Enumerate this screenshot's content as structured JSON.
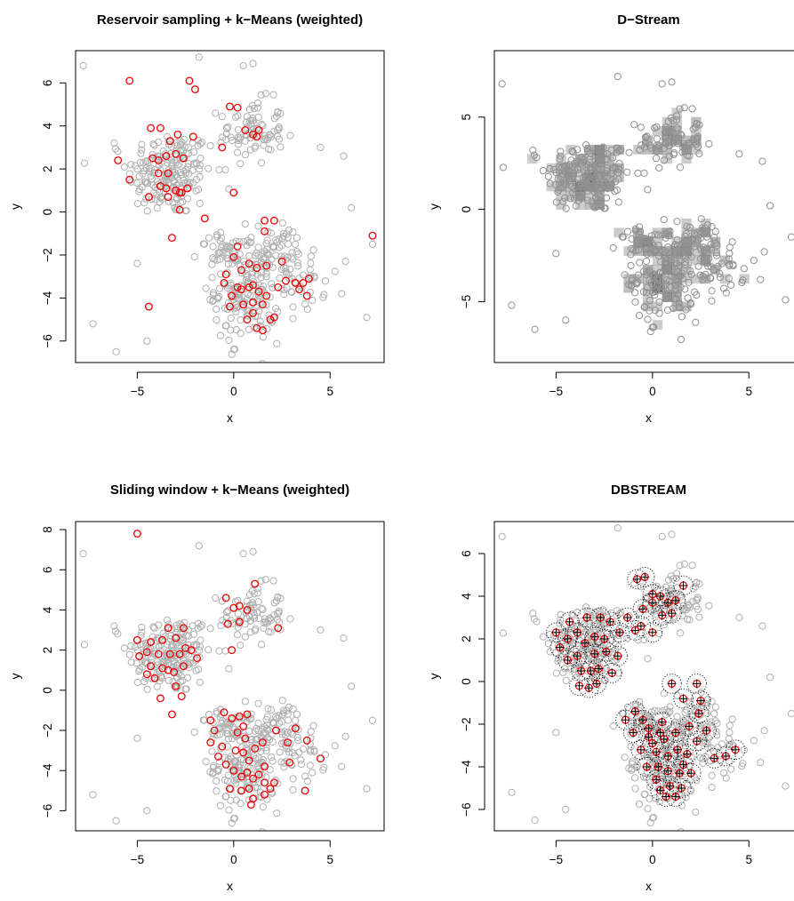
{
  "figure": {
    "panels": [
      {
        "id": "reservoir",
        "title": "Reservoir sampling + k−Means (weighted)"
      },
      {
        "id": "dstream",
        "title": "D−Stream"
      },
      {
        "id": "sliding",
        "title": "Sliding window + k−Means (weighted)"
      },
      {
        "id": "dbstream",
        "title": "DBSTREAM"
      }
    ]
  },
  "chart_data": [
    {
      "type": "scatter",
      "title": "Reservoir sampling + k−Means (weighted)",
      "xlabel": "x",
      "ylabel": "y",
      "xlim": [
        -8.2,
        7.8
      ],
      "ylim": [
        -7.0,
        7.5
      ],
      "xticks": [
        -5,
        0,
        5
      ],
      "yticks": [
        -6,
        -4,
        -2,
        0,
        2,
        4,
        6
      ],
      "grid": false,
      "series": [
        {
          "role": "data points",
          "color": "#b0b0b0",
          "generated_cloud": true
        },
        {
          "role": "cluster centers",
          "color": "#ee0000",
          "points": [
            [
              -5.4,
              6.1
            ],
            [
              -2.3,
              6.1
            ],
            [
              -2.0,
              5.7
            ],
            [
              -0.2,
              4.9
            ],
            [
              0.2,
              4.85
            ],
            [
              -4.3,
              3.9
            ],
            [
              -3.8,
              3.9
            ],
            [
              -3.3,
              3.3
            ],
            [
              -2.9,
              3.6
            ],
            [
              0.6,
              3.8
            ],
            [
              1.0,
              3.6
            ],
            [
              1.3,
              3.8
            ],
            [
              1.2,
              3.5
            ],
            [
              -0.6,
              3.0
            ],
            [
              -4.2,
              2.5
            ],
            [
              -3.9,
              2.4
            ],
            [
              -6.0,
              2.4
            ],
            [
              -3.5,
              2.6
            ],
            [
              -3.0,
              2.7
            ],
            [
              -2.6,
              2.5
            ],
            [
              -2.1,
              3.5
            ],
            [
              -3.9,
              1.8
            ],
            [
              -3.4,
              1.8
            ],
            [
              -3.8,
              1.2
            ],
            [
              -3.5,
              1.1
            ],
            [
              -3.0,
              1.0
            ],
            [
              -2.7,
              0.9
            ],
            [
              -2.8,
              0.9
            ],
            [
              -2.4,
              1.1
            ],
            [
              -5.4,
              1.5
            ],
            [
              -4.4,
              0.7
            ],
            [
              -3.4,
              0.7
            ],
            [
              -2.8,
              0.1
            ],
            [
              0.0,
              0.9
            ],
            [
              -1.5,
              -0.3
            ],
            [
              -3.2,
              -1.2
            ],
            [
              -4.4,
              -4.4
            ],
            [
              1.6,
              -0.4
            ],
            [
              2.1,
              -0.4
            ],
            [
              1.6,
              -0.9
            ],
            [
              7.2,
              -1.1
            ],
            [
              0.2,
              -1.6
            ],
            [
              0.0,
              -2.1
            ],
            [
              0.8,
              -2.4
            ],
            [
              1.2,
              -2.6
            ],
            [
              1.7,
              -2.5
            ],
            [
              2.5,
              -2.3
            ],
            [
              -0.5,
              -3.3
            ],
            [
              0.2,
              -3.5
            ],
            [
              -0.1,
              -3.9
            ],
            [
              0.4,
              -3.6
            ],
            [
              0.8,
              -3.5
            ],
            [
              1.0,
              -3.4
            ],
            [
              1.3,
              -3.7
            ],
            [
              1.0,
              -4.2
            ],
            [
              1.5,
              -4.3
            ],
            [
              0.5,
              -4.3
            ],
            [
              -0.2,
              -4.4
            ],
            [
              1.0,
              -4.7
            ],
            [
              0.7,
              -5.0
            ],
            [
              2.1,
              -4.9
            ],
            [
              1.9,
              -5.0
            ],
            [
              1.2,
              -5.4
            ],
            [
              1.5,
              -5.5
            ],
            [
              3.2,
              -3.3
            ],
            [
              3.6,
              -3.3
            ],
            [
              3.9,
              -3.1
            ],
            [
              3.8,
              -3.9
            ],
            [
              2.7,
              -3.2
            ],
            [
              3.4,
              -3.6
            ],
            [
              0.4,
              -2.7
            ],
            [
              -0.4,
              -2.9
            ],
            [
              1.7,
              -3.9
            ],
            [
              2.3,
              -3.5
            ]
          ]
        }
      ]
    },
    {
      "type": "scatter",
      "title": "D−Stream",
      "xlabel": "x",
      "ylabel": "y",
      "xlim": [
        -8.2,
        7.8
      ],
      "ylim": [
        -8.3,
        8.6
      ],
      "xticks": [
        -5,
        0,
        5
      ],
      "yticks": [
        -5,
        0,
        5
      ],
      "grid": false,
      "series": [
        {
          "role": "data points",
          "color": "#909090",
          "generated_cloud": true
        },
        {
          "role": "dense grid cells",
          "color": "#000000",
          "cell_size": 0.5
        }
      ]
    },
    {
      "type": "scatter",
      "title": "Sliding window + k−Means (weighted)",
      "xlabel": "x",
      "ylabel": "y",
      "xlim": [
        -8.2,
        7.8
      ],
      "ylim": [
        -7.0,
        8.4
      ],
      "xticks": [
        -5,
        0,
        5
      ],
      "yticks": [
        -6,
        -4,
        -2,
        0,
        2,
        4,
        6,
        8
      ],
      "grid": false,
      "series": [
        {
          "role": "data points",
          "color": "#b0b0b0",
          "generated_cloud": true
        },
        {
          "role": "cluster centers",
          "color": "#ee0000",
          "points": [
            [
              -5.0,
              7.8
            ],
            [
              1.1,
              5.3
            ],
            [
              2.3,
              3.1
            ],
            [
              -0.4,
              4.6
            ],
            [
              0.0,
              4.1
            ],
            [
              0.3,
              4.2
            ],
            [
              0.7,
              4.0
            ],
            [
              0.3,
              3.4
            ],
            [
              -0.3,
              3.3
            ],
            [
              -0.1,
              2.0
            ],
            [
              -5.0,
              2.5
            ],
            [
              -4.3,
              2.4
            ],
            [
              -3.7,
              2.5
            ],
            [
              -3.4,
              3.1
            ],
            [
              -2.6,
              3.1
            ],
            [
              -3.0,
              2.6
            ],
            [
              -2.5,
              2.1
            ],
            [
              -2.2,
              2.0
            ],
            [
              -2.8,
              1.8
            ],
            [
              -3.3,
              1.8
            ],
            [
              -3.9,
              1.8
            ],
            [
              -4.5,
              1.9
            ],
            [
              -4.9,
              1.7
            ],
            [
              -4.3,
              1.2
            ],
            [
              -3.7,
              1.1
            ],
            [
              -3.4,
              1.0
            ],
            [
              -3.1,
              0.9
            ],
            [
              -2.6,
              1.2
            ],
            [
              -1.9,
              1.6
            ],
            [
              -4.1,
              0.6
            ],
            [
              -3.0,
              0.2
            ],
            [
              -4.5,
              0.8
            ],
            [
              -3.8,
              -0.4
            ],
            [
              -2.7,
              -0.3
            ],
            [
              -3.2,
              -1.2
            ],
            [
              -1.2,
              -1.5
            ],
            [
              -0.5,
              -1.1
            ],
            [
              -0.1,
              -1.4
            ],
            [
              0.3,
              -1.3
            ],
            [
              0.7,
              -1.2
            ],
            [
              -1.0,
              -2.0
            ],
            [
              0.2,
              -2.1
            ],
            [
              0.6,
              -2.4
            ],
            [
              -0.6,
              -2.8
            ],
            [
              0.1,
              -3.0
            ],
            [
              0.5,
              -3.1
            ],
            [
              0.8,
              -3.5
            ],
            [
              1.1,
              -2.9
            ],
            [
              1.5,
              -2.6
            ],
            [
              -1.2,
              -2.6
            ],
            [
              -0.8,
              -3.3
            ],
            [
              -0.4,
              -3.7
            ],
            [
              0.0,
              -4.0
            ],
            [
              0.4,
              -4.3
            ],
            [
              0.7,
              -4.1
            ],
            [
              1.0,
              -4.4
            ],
            [
              1.3,
              -4.2
            ],
            [
              1.6,
              -4.6
            ],
            [
              2.1,
              -4.6
            ],
            [
              1.9,
              -4.9
            ],
            [
              1.6,
              -5.2
            ],
            [
              1.0,
              -5.4
            ],
            [
              0.9,
              -5.7
            ],
            [
              0.4,
              -5.0
            ],
            [
              -0.2,
              -4.9
            ],
            [
              0.8,
              -4.9
            ],
            [
              2.2,
              -2.0
            ],
            [
              2.8,
              -2.6
            ],
            [
              3.2,
              -1.9
            ],
            [
              2.9,
              -3.6
            ],
            [
              3.8,
              -2.5
            ],
            [
              4.5,
              -3.4
            ],
            [
              3.7,
              -5.0
            ],
            [
              1.6,
              -3.8
            ],
            [
              0.5,
              -1.8
            ]
          ]
        }
      ]
    },
    {
      "type": "scatter",
      "title": "DBSTREAM",
      "xlabel": "x",
      "ylabel": "y",
      "xlim": [
        -8.2,
        7.8
      ],
      "ylim": [
        -7.0,
        7.5
      ],
      "xticks": [
        -5,
        0,
        5
      ],
      "yticks": [
        -6,
        -4,
        -2,
        0,
        2,
        4,
        6
      ],
      "grid": false,
      "series": [
        {
          "role": "data points",
          "color": "#b0b0b0",
          "generated_cloud": true
        },
        {
          "role": "micro-cluster centers",
          "color": "#ee0000",
          "marker": "circle-cross",
          "radius": 0.5,
          "points": [
            [
              -5.0,
              2.3
            ],
            [
              -4.8,
              1.6
            ],
            [
              -4.4,
              1.0
            ],
            [
              -4.4,
              2.0
            ],
            [
              -4.3,
              2.8
            ],
            [
              -3.9,
              2.3
            ],
            [
              -3.9,
              1.2
            ],
            [
              -3.7,
              0.5
            ],
            [
              -3.8,
              -0.2
            ],
            [
              -3.5,
              1.8
            ],
            [
              -3.4,
              3.0
            ],
            [
              -3.3,
              -0.3
            ],
            [
              -3.2,
              0.5
            ],
            [
              -3.0,
              2.1
            ],
            [
              -3.0,
              1.3
            ],
            [
              -2.8,
              0.6
            ],
            [
              -2.7,
              3.0
            ],
            [
              -2.5,
              2.0
            ],
            [
              -2.4,
              1.4
            ],
            [
              -2.2,
              2.8
            ],
            [
              -2.1,
              0.4
            ],
            [
              -1.8,
              1.2
            ],
            [
              -1.7,
              2.3
            ],
            [
              -1.3,
              3.0
            ],
            [
              -0.9,
              2.4
            ],
            [
              -0.5,
              3.4
            ],
            [
              -0.6,
              2.6
            ],
            [
              -0.8,
              4.8
            ],
            [
              -0.4,
              4.9
            ],
            [
              0.0,
              3.7
            ],
            [
              0.0,
              4.1
            ],
            [
              0.4,
              4.0
            ],
            [
              0.5,
              3.1
            ],
            [
              0.8,
              3.7
            ],
            [
              1.0,
              3.2
            ],
            [
              1.2,
              3.8
            ],
            [
              1.6,
              4.5
            ],
            [
              0.0,
              2.3
            ],
            [
              1.0,
              -0.1
            ],
            [
              1.6,
              -0.8
            ],
            [
              2.3,
              -0.1
            ],
            [
              2.5,
              -0.9
            ],
            [
              -1.4,
              -1.8
            ],
            [
              -0.9,
              -1.4
            ],
            [
              -0.5,
              -1.8
            ],
            [
              -1.0,
              -2.4
            ],
            [
              -0.2,
              -2.2
            ],
            [
              0.5,
              -1.9
            ],
            [
              0.0,
              -2.9
            ],
            [
              0.6,
              -2.7
            ],
            [
              -0.6,
              -3.2
            ],
            [
              0.2,
              -3.3
            ],
            [
              0.8,
              -3.5
            ],
            [
              1.3,
              -3.2
            ],
            [
              -0.3,
              -4.0
            ],
            [
              0.3,
              -4.0
            ],
            [
              0.8,
              -4.2
            ],
            [
              1.4,
              -4.3
            ],
            [
              0.2,
              -4.6
            ],
            [
              0.9,
              -4.9
            ],
            [
              1.5,
              -5.0
            ],
            [
              0.7,
              -5.4
            ],
            [
              1.2,
              -5.4
            ],
            [
              0.4,
              -5.1
            ],
            [
              1.2,
              -2.4
            ],
            [
              1.9,
              -2.1
            ],
            [
              2.4,
              -1.5
            ],
            [
              2.3,
              -2.8
            ],
            [
              2.8,
              -2.3
            ],
            [
              3.2,
              -3.6
            ],
            [
              3.8,
              -3.5
            ],
            [
              4.3,
              -3.2
            ],
            [
              2.0,
              -4.3
            ],
            [
              1.8,
              -3.4
            ],
            [
              -0.2,
              -2.6
            ],
            [
              0.4,
              -2.4
            ],
            [
              1.6,
              -3.9
            ],
            [
              -2.9,
              -0.1
            ]
          ]
        }
      ]
    }
  ]
}
